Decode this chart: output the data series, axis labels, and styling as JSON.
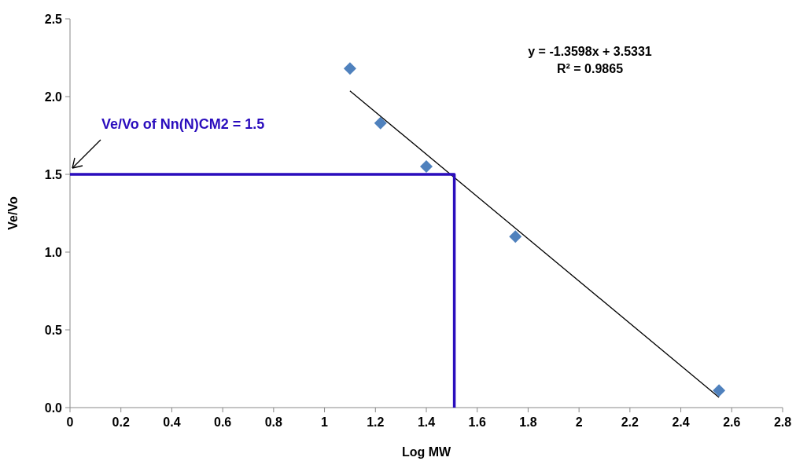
{
  "chart_data": {
    "type": "scatter",
    "xlabel": "Log MW",
    "ylabel": "Ve/Vo",
    "xlim": [
      0,
      2.8
    ],
    "xticks": [
      0,
      0.2,
      0.4,
      0.6,
      0.8,
      1,
      1.2,
      1.4,
      1.6,
      1.8,
      2,
      2.2,
      2.4,
      2.6,
      2.8
    ],
    "ylim": [
      0,
      2.5
    ],
    "yticks": [
      {
        "value": 0,
        "label": "0.0"
      },
      {
        "value": 0.5,
        "label": "0.5"
      },
      {
        "value": 1,
        "label": "1.0"
      },
      {
        "value": 1.5,
        "label": "1.5"
      },
      {
        "value": 2,
        "label": "2.0"
      },
      {
        "value": 2.5,
        "label": "2.5"
      }
    ],
    "grid": false,
    "series": [
      {
        "marker": "diamond",
        "color": "#4f81bd",
        "x": [
          1.1,
          1.22,
          1.4,
          1.75,
          2.55
        ],
        "values": [
          2.18,
          1.83,
          1.55,
          1.1,
          0.11
        ]
      },
      {
        "type": "line",
        "color": "#000000",
        "x": [
          1.1,
          2.55
        ],
        "values": [
          2.037,
          0.066
        ]
      },
      {
        "type": "line",
        "color": "#2a0dbd",
        "x": [
          0,
          1.51,
          1.51
        ],
        "values": [
          1.5,
          1.5,
          0
        ]
      }
    ],
    "annotations": [
      "y = -1.3598x + 3.5331",
      "R² = 0.9865",
      {
        "text": "Ve/Vo of Nn(N)CM2 = 1.5",
        "x": 0,
        "y": 1.5
      }
    ]
  }
}
